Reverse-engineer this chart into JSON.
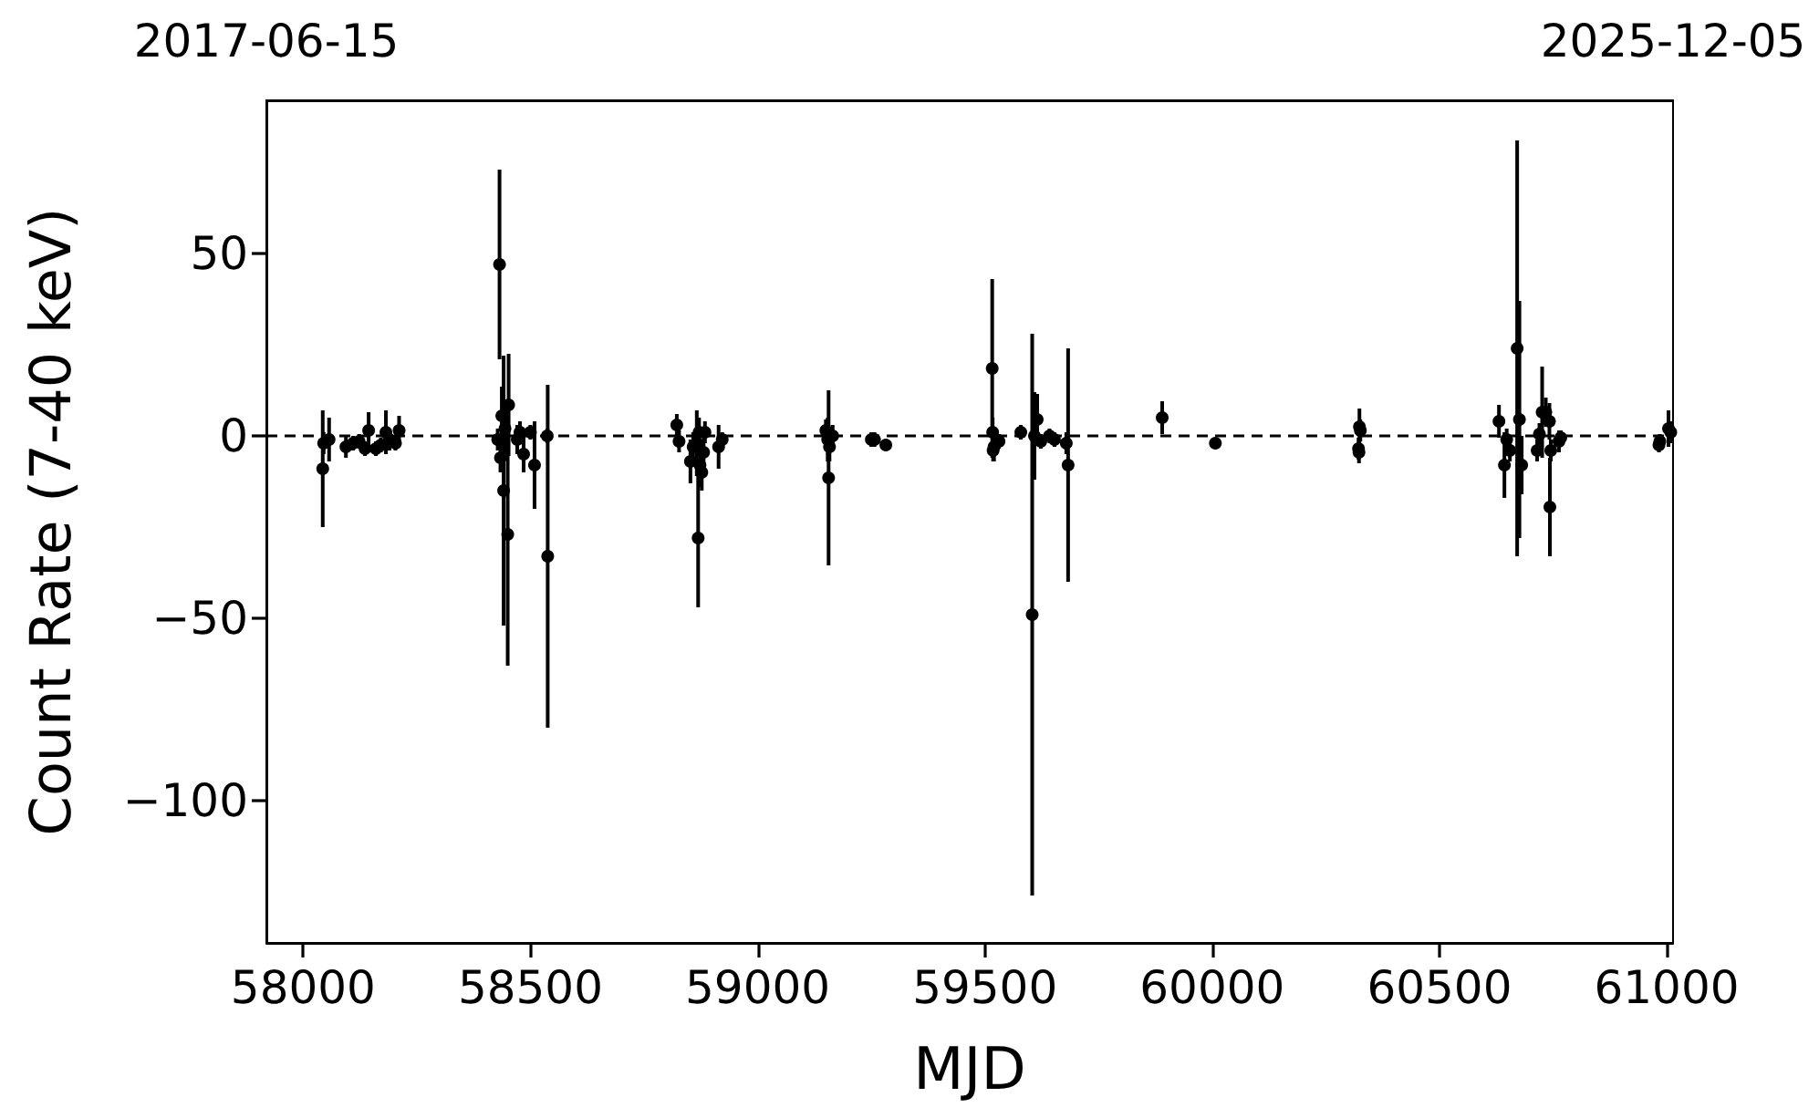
{
  "chart_data": {
    "type": "scatter",
    "xlabel": "MJD",
    "ylabel": "Count Rate (7-40 keV)",
    "x": [
      58043,
      58045,
      58057,
      58094,
      58110,
      58123,
      58136,
      58144,
      58160,
      58171,
      58182,
      58190,
      58203,
      58211,
      58428,
      58432,
      58434,
      58437,
      58441,
      58444,
      58450,
      58452,
      58471,
      58477,
      58485,
      58500,
      58509,
      58537,
      58538,
      58822,
      58827,
      58852,
      58858,
      58866,
      58869,
      58871,
      58873,
      58877,
      58881,
      58884,
      58914,
      58922,
      59150,
      59154,
      59156,
      59158,
      59165,
      59250,
      59257,
      59282,
      59516,
      59517,
      59518,
      59520,
      59531,
      59579,
      59604,
      59609,
      59615,
      59623,
      59642,
      59653,
      59679,
      59683,
      59890,
      60007,
      60322,
      60323,
      60324,
      60326,
      60631,
      60643,
      60648,
      60655,
      60671,
      60676,
      60681,
      60715,
      60720,
      60726,
      60734,
      60742,
      60743,
      60745,
      60763,
      60767,
      60983,
      60985,
      61004,
      61009
    ],
    "series": [
      {
        "color": "#000000",
        "values": [
          -9,
          -2,
          -1,
          -3,
          -2,
          -1.5,
          -3.5,
          1.5,
          -3.5,
          -2.5,
          1,
          -1,
          -2,
          1.5,
          -1,
          47,
          -6,
          5.5,
          -15,
          2,
          -27,
          8.5,
          -1,
          1,
          -5,
          1,
          -8,
          0,
          -33,
          3,
          -1.5,
          -7,
          -3,
          -2,
          -28,
          1,
          -8,
          -10,
          -4.5,
          1,
          -3,
          -1,
          1.5,
          -1,
          -11.5,
          -3,
          0,
          -1,
          -1,
          -2.5,
          18.5,
          1,
          -4,
          -3,
          -1.5,
          1,
          -49,
          0,
          4.5,
          -1.5,
          0,
          -1,
          -2,
          -8,
          5,
          -2,
          -3.5,
          -4.5,
          2.5,
          1.5,
          4,
          -8,
          -1,
          -4,
          24,
          4.5,
          -8,
          -4,
          0.5,
          6.5,
          6.5,
          4,
          -19.5,
          -4,
          -1.5,
          -0.5,
          -2.5,
          -1.5,
          2,
          1
        ],
        "errors": [
          16,
          3,
          6,
          3,
          2,
          2,
          2,
          5,
          2,
          2,
          6,
          3,
          2,
          4,
          3,
          26,
          4,
          8,
          37,
          7,
          36,
          14,
          4,
          3,
          5,
          2,
          12,
          2,
          47,
          3,
          3,
          6,
          4,
          9,
          19,
          4,
          6,
          5,
          4,
          3,
          6,
          2,
          3,
          6,
          24,
          4,
          3,
          2,
          2,
          1.5,
          24.5,
          4,
          3,
          4,
          2,
          2,
          77,
          12,
          7,
          2,
          2,
          2,
          3,
          32,
          4.5,
          1.5,
          3,
          3,
          5,
          3,
          4.5,
          9,
          3,
          3,
          57,
          32.5,
          8,
          3,
          3,
          12.5,
          4,
          5,
          13.5,
          3,
          3,
          2,
          2,
          2,
          5,
          3
        ]
      }
    ],
    "marker": "circle",
    "xlim": [
      57919,
      61014
    ],
    "xticks": [
      58000,
      58500,
      59000,
      59500,
      60000,
      60500,
      61000
    ],
    "ylim": [
      -139,
      92
    ],
    "yticks": [
      {
        "value": -100,
        "label": "−100"
      },
      {
        "value": -50,
        "label": "−50"
      },
      0,
      50
    ],
    "x2lim": [
      "2017-06-15",
      "2025-12-05"
    ],
    "x2ticks": [
      "2017-06-15",
      "2025-12-05"
    ],
    "ref_lines": [
      {
        "axis": "y",
        "value": 0,
        "color": "#000000",
        "line_style": "dashed"
      }
    ]
  }
}
